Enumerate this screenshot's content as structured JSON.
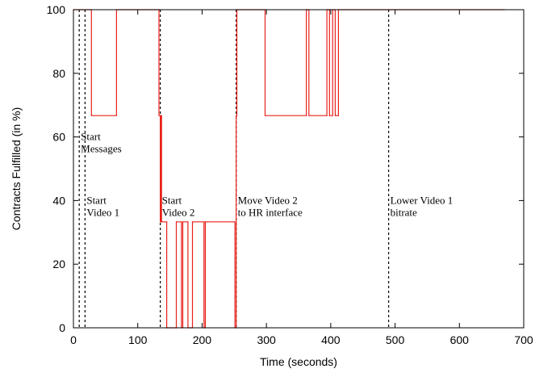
{
  "chart_data": {
    "type": "line",
    "xlabel": "Time (seconds)",
    "ylabel": "Contracts Fulfilled (in %)",
    "xlim": [
      0,
      700
    ],
    "ylim": [
      0,
      100
    ],
    "x_ticks": [
      0,
      100,
      200,
      300,
      400,
      500,
      600,
      700
    ],
    "y_ticks": [
      0,
      20,
      40,
      60,
      80,
      100
    ],
    "grid": false,
    "line_color": "#e8211a",
    "event_line_color": "#000000",
    "events": [
      {
        "x": 9,
        "text_lines": [
          "Start",
          "Messages"
        ],
        "label_y": 60
      },
      {
        "x": 18,
        "text_lines": [
          "Start",
          "Video 1"
        ],
        "label_y": 40
      },
      {
        "x": 135,
        "text_lines": [
          "Start",
          "Video 2"
        ],
        "label_y": 40
      },
      {
        "x": 253,
        "text_lines": [
          "Move Video 2",
          "to HR interface"
        ],
        "label_y": 40
      },
      {
        "x": 490,
        "text_lines": [
          "Lower Video 1",
          "bitrate"
        ],
        "label_y": 40
      }
    ],
    "series": [
      {
        "x": [
          0,
          28,
          28,
          67,
          67,
          133,
          133,
          135,
          135,
          136,
          136,
          137,
          137,
          145,
          145,
          160,
          160,
          168,
          168,
          170,
          170,
          178,
          178,
          185,
          185,
          203,
          203,
          205,
          205,
          251,
          251,
          253,
          253,
          254,
          254,
          298,
          298,
          362,
          362,
          366,
          366,
          394,
          394,
          398,
          398,
          403,
          403,
          407,
          407,
          412,
          412,
          490,
          490,
          670
        ],
        "y": [
          100,
          100,
          66.7,
          66.7,
          100,
          100,
          66.7,
          66.7,
          33.3,
          33.3,
          66.7,
          66.7,
          33.3,
          33.3,
          0,
          0,
          33.3,
          33.3,
          0,
          0,
          33.3,
          33.3,
          0,
          0,
          33.3,
          33.3,
          0,
          0,
          33.3,
          33.3,
          0,
          0,
          66.7,
          66.7,
          100,
          100,
          66.7,
          66.7,
          100,
          100,
          66.7,
          66.7,
          100,
          100,
          66.7,
          66.7,
          100,
          100,
          66.7,
          66.7,
          100,
          100,
          100,
          100
        ]
      }
    ]
  }
}
